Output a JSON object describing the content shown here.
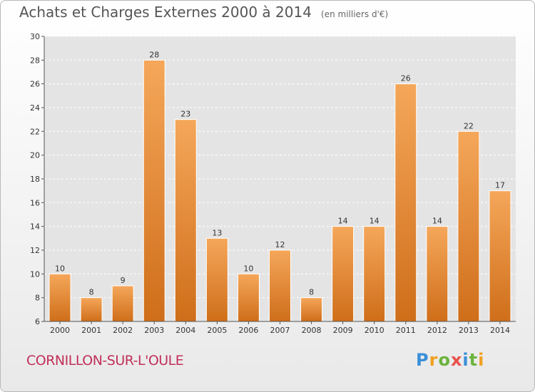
{
  "chart_data": {
    "type": "bar",
    "title": "Achats et Charges Externes 2000 à 2014",
    "unit_label": "(en milliers d'€)",
    "categories": [
      "2000",
      "2001",
      "2002",
      "2003",
      "2004",
      "2005",
      "2006",
      "2007",
      "2008",
      "2009",
      "2010",
      "2011",
      "2012",
      "2013",
      "2014"
    ],
    "values": [
      10,
      8,
      9,
      28,
      23,
      13,
      10,
      12,
      8,
      14,
      14,
      26,
      14,
      22,
      17
    ],
    "ylim": [
      6,
      30
    ],
    "yticks": [
      6,
      8,
      10,
      12,
      14,
      16,
      18,
      20,
      22,
      24,
      26,
      28,
      30
    ],
    "grid": true,
    "bar_color_light": "#f5a75a",
    "bar_color_dark": "#cf6e1a"
  },
  "footer": {
    "commune": "CORNILLON-SUR-L'OULE",
    "commune_color": "#c0305a",
    "brand_letters": [
      "P",
      "r",
      "o",
      "x",
      "i",
      "t",
      "i"
    ]
  }
}
